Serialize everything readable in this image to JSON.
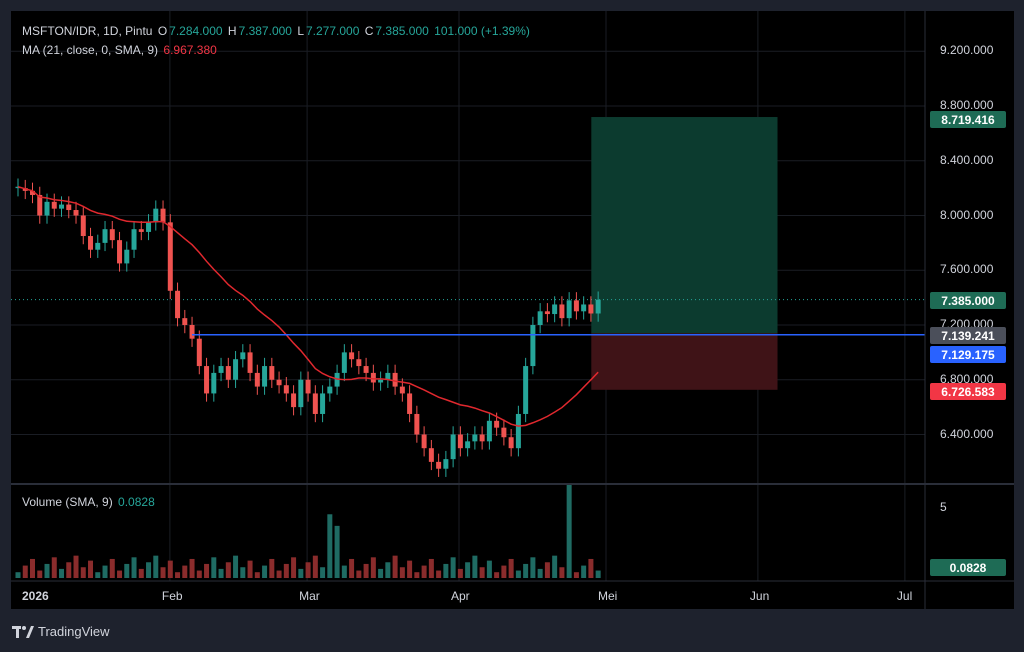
{
  "symbol_line": {
    "symbol": "MSFTON/IDR, 1D, Pintu",
    "o_label": "O",
    "o_value": "7.284.000",
    "h_label": "H",
    "h_value": "7.387.000",
    "l_label": "L",
    "l_value": "7.277.000",
    "c_label": "C",
    "c_value": "7.385.000",
    "change": "101.000 (+1.39%)"
  },
  "ma_line": {
    "label": "MA (21, close, 0, SMA, 9)",
    "value": "6.967.380"
  },
  "volume_line": {
    "label": "Volume (SMA, 9)",
    "value": "0.0828"
  },
  "price_ticks": [
    "9.200.000",
    "8.800.000",
    "8.400.000",
    "8.000.000",
    "7.600.000",
    "7.200.000",
    "6.800.000",
    "6.400.000"
  ],
  "volume_ticks": [
    "5"
  ],
  "x_ticks": [
    "2026",
    "Feb",
    "Mar",
    "Apr",
    "Mei",
    "Jun",
    "Jul"
  ],
  "badges": {
    "target": "8.719.416",
    "last": "7.385.000",
    "entry": "7.139.241",
    "hline": "7.129.175",
    "stop": "6.726.583",
    "volume": "0.0828"
  },
  "brand": "TradingView",
  "colors": {
    "background": "#000000",
    "up": "#26a69a",
    "down": "#ef5350",
    "ma": "#e0282e",
    "hline": "#2962ff",
    "profit_zone": "#0c3b2f",
    "loss_zone": "#3f1317"
  },
  "chart_data": [
    {
      "type": "candlestick",
      "title": "MSFTON/IDR, 1D, Pintu",
      "ylim": [
        6150000,
        9450000
      ],
      "y_scale": "linear",
      "x_range": [
        "2026-01-01",
        "2026-07-01"
      ],
      "last_close": 7385000,
      "ma": {
        "period": 21,
        "type": "SMA",
        "last_value": 6967380
      },
      "horizontal_line": 7129175,
      "position": {
        "side": "long",
        "entry": 7139241,
        "target": 8719416,
        "stop": 6726583,
        "start": "2026-04-28",
        "end": "2026-06-05"
      },
      "grid": true
    },
    {
      "type": "bar",
      "title": "Volume (SMA, 9)",
      "last_value": 0.0828,
      "ylim": [
        0,
        5.8
      ]
    }
  ]
}
